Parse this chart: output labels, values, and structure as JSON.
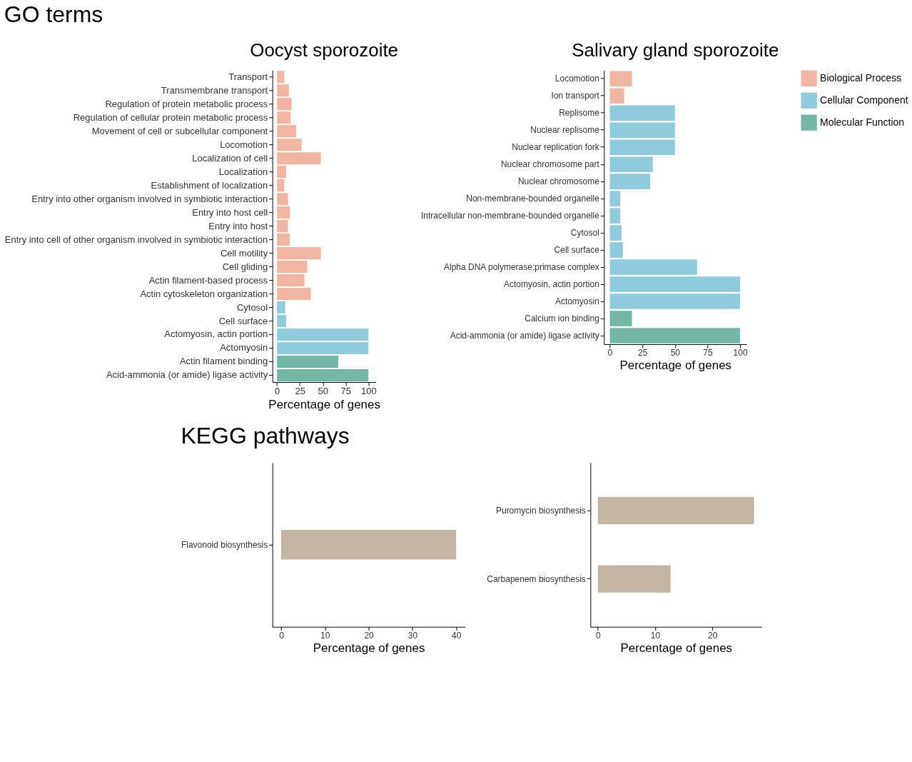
{
  "chart_data": [
    {
      "type": "bar",
      "orientation": "horizontal",
      "title": "Oocyst sporozoite",
      "annotations": [
        "GO terms"
      ],
      "legend": "top right",
      "xlabel": "Percentage of genes",
      "xlim": [
        -5,
        108
      ],
      "xticks": [
        0,
        25,
        50,
        75,
        100
      ],
      "categories": [
        "Transport",
        "Transmembrane transport",
        "Regulation of protein metabolic process",
        "Regulation of cellular protein metabolic process",
        "Movement of cell or subcellular component",
        "Locomotion",
        "Localization of cell",
        "Localization",
        "Establishment of localization",
        "Entry into other organism involved in symbiotic interaction",
        "Entry into host cell",
        "Entry into host",
        "Entry into cell of other organism involved in symbiotic interaction",
        "Cell motility",
        "Cell gliding",
        "Actin filament-based process",
        "Actin cytoskeleton organization",
        "Cytosol",
        "Cell surface",
        "Actomyosin, actin portion",
        "Actomyosin",
        "Actin filament binding",
        "Acid-ammonia (or amide) ligase activity"
      ],
      "series": [
        {
          "name": "Biological Process",
          "color": "#f2b5a4",
          "values": [
            8,
            13,
            16,
            15,
            21,
            27,
            48,
            10,
            8,
            12,
            14,
            12,
            14,
            48,
            33,
            30,
            37,
            null,
            null,
            null,
            null,
            null,
            null
          ]
        },
        {
          "name": "Cellular Component",
          "color": "#8ecbdb",
          "values": [
            null,
            null,
            null,
            null,
            null,
            null,
            null,
            null,
            null,
            null,
            null,
            null,
            null,
            null,
            null,
            null,
            null,
            9,
            10,
            100,
            100,
            null,
            null
          ]
        },
        {
          "name": "Molecular Function",
          "color": "#72b8a4",
          "values": [
            null,
            null,
            null,
            null,
            null,
            null,
            null,
            null,
            null,
            null,
            null,
            null,
            null,
            null,
            null,
            null,
            null,
            null,
            null,
            null,
            null,
            67,
            100
          ]
        }
      ]
    },
    {
      "type": "bar",
      "orientation": "horizontal",
      "title": "Salivary gland sporozoite",
      "legend": "top right",
      "xlabel": "Percentage of genes",
      "xlim": [
        -4.5,
        105
      ],
      "xticks": [
        0,
        25,
        50,
        75,
        100
      ],
      "categories": [
        "Locomotion",
        "Ion transport",
        "Replisome",
        "Nuclear replisome",
        "Nuclear replication fork",
        "Nuclear chromosome part",
        "Nuclear chromosome",
        "Non-membrane-bounded organelle",
        "Intracellular non-membrane-bounded organelle",
        "Cytosol",
        "Cell surface",
        "Alpha DNA polymerase:primase complex",
        "Actomyosin, actin portion",
        "Actomyosin",
        "Calcium ion binding",
        "Acid-ammonia (or amide) ligase activity"
      ],
      "series": [
        {
          "name": "Biological Process",
          "color": "#f2b5a4",
          "values": [
            17,
            11,
            null,
            null,
            null,
            null,
            null,
            null,
            null,
            null,
            null,
            null,
            null,
            null,
            null,
            null
          ]
        },
        {
          "name": "Cellular Component",
          "color": "#8ecbdb",
          "values": [
            null,
            null,
            50,
            50,
            50,
            33,
            31,
            8,
            8,
            9,
            10,
            67,
            100,
            100,
            null,
            null
          ]
        },
        {
          "name": "Molecular Function",
          "color": "#72b8a4",
          "values": [
            null,
            null,
            null,
            null,
            null,
            null,
            null,
            null,
            null,
            null,
            null,
            null,
            null,
            null,
            17,
            100
          ]
        }
      ]
    },
    {
      "type": "bar",
      "orientation": "horizontal",
      "annotations": [
        "KEGG pathways"
      ],
      "xlabel": "Percentage of genes",
      "xlim": [
        -2,
        42
      ],
      "xticks": [
        0,
        10,
        20,
        30,
        40
      ],
      "categories": [
        "Flavonoid biosynthesis"
      ],
      "series": [
        {
          "color": "#c4b5a5",
          "values": [
            40
          ]
        }
      ]
    },
    {
      "type": "bar",
      "orientation": "horizontal",
      "xlabel": "Percentage of genes",
      "xlim": [
        -1.3,
        28.6
      ],
      "xticks": [
        0,
        10,
        20
      ],
      "categories": [
        "Puromycin biosynthesis",
        "Carbapenem biosynthesis"
      ],
      "series": [
        {
          "color": "#c4b5a5",
          "values": [
            27.3,
            12.7
          ]
        }
      ]
    }
  ]
}
